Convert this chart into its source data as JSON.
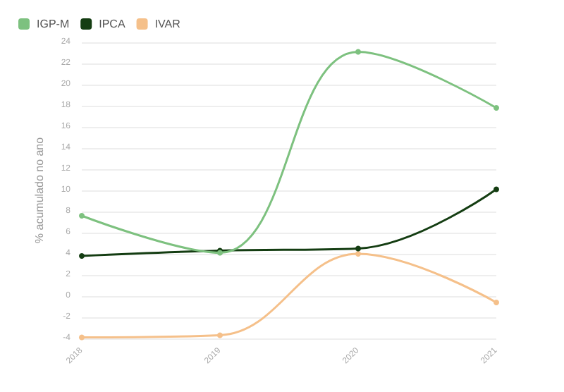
{
  "chart_data": {
    "type": "line",
    "ylabel": "% acumulado no ano",
    "categories": [
      "2018",
      "2019",
      "2020",
      "2021"
    ],
    "series": [
      {
        "name": "IGP-M",
        "color": "#7dc17f",
        "values": [
          7.6,
          4.1,
          23.1,
          17.8
        ]
      },
      {
        "name": "IPCA",
        "color": "#143d12",
        "values": [
          3.8,
          4.3,
          4.5,
          10.1
        ]
      },
      {
        "name": "IVAR",
        "color": "#f5c08a",
        "values": [
          -3.9,
          -3.7,
          4.0,
          -0.6
        ]
      }
    ],
    "ylim": [
      -4,
      24
    ],
    "yticks": [
      -4,
      -2,
      0,
      2,
      4,
      6,
      8,
      10,
      12,
      14,
      16,
      18,
      20,
      22,
      24
    ],
    "grid": "y",
    "legend": "top left",
    "marker": "circle",
    "line_style": "solid"
  }
}
